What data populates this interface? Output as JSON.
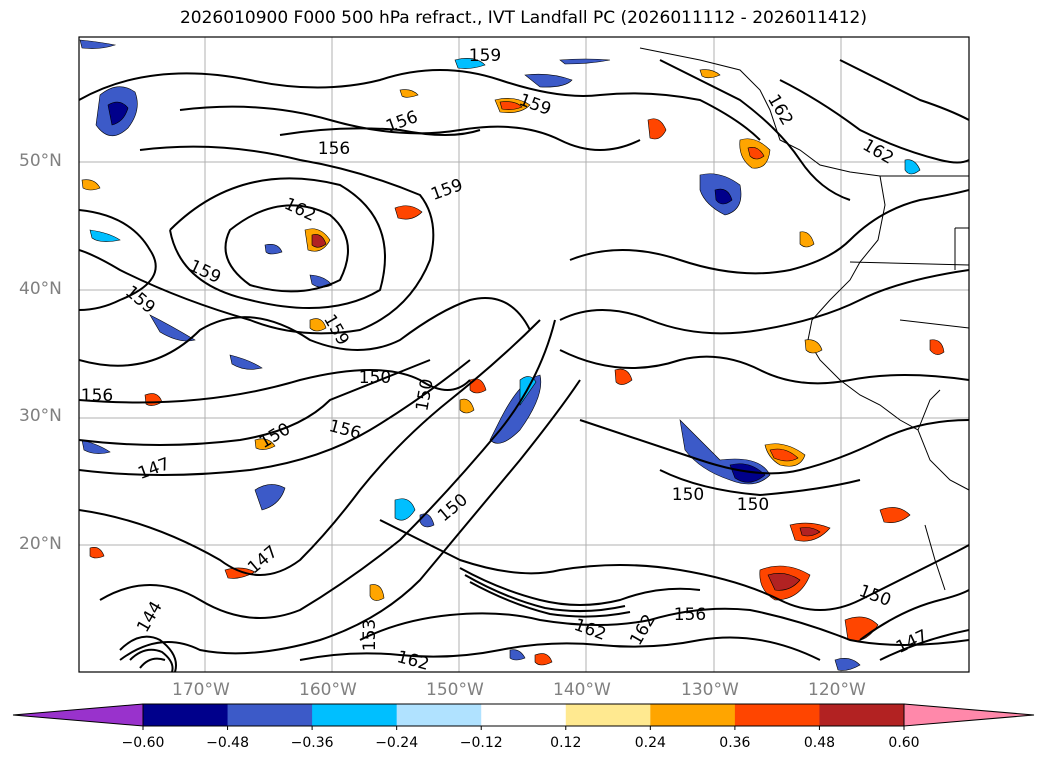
{
  "title": "2026010900 F000 500 hPa refract., IVT Landfall PC (2026011112 - 2026011412)",
  "map": {
    "lat_labels": [
      "50°N",
      "40°N",
      "30°N",
      "20°N"
    ],
    "lon_labels": [
      "170°W",
      "160°W",
      "150°W",
      "140°W",
      "130°W",
      "120°W"
    ],
    "contour_labels": [
      "159",
      "159",
      "156",
      "156",
      "162",
      "159",
      "162",
      "159",
      "159",
      "159",
      "156",
      "150",
      "156",
      "150",
      "147",
      "147",
      "150",
      "150",
      "150",
      "144",
      "153",
      "162",
      "162",
      "162",
      "150",
      "147",
      "162",
      "156",
      "150"
    ]
  },
  "colorbar": {
    "ticks": [
      "−0.60",
      "−0.48",
      "−0.36",
      "−0.24",
      "−0.12",
      "0.12",
      "0.24",
      "0.36",
      "0.48",
      "0.60"
    ],
    "colors": [
      "#9932cc",
      "#00008b",
      "#3c5ac8",
      "#00bfff",
      "#b0e2ff",
      "#ffffff",
      "#ffe990",
      "#ffa500",
      "#ff4500",
      "#b22222",
      "#ff88aa"
    ]
  }
}
